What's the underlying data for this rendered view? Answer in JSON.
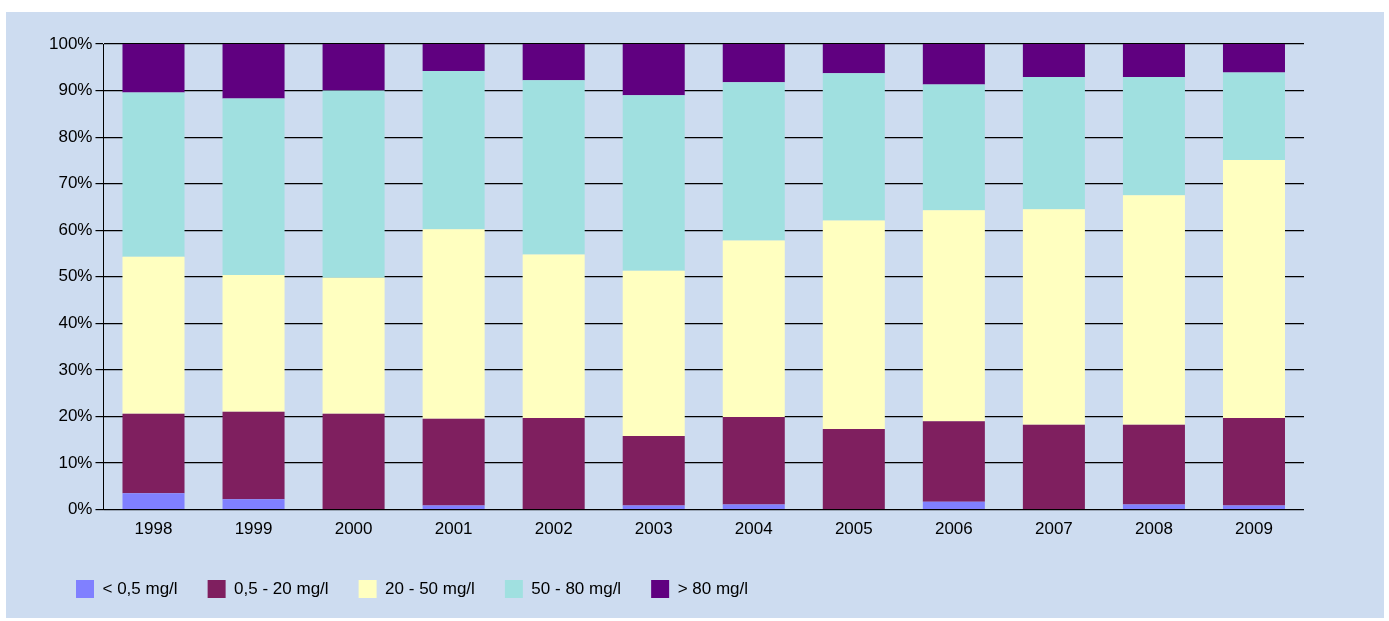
{
  "chart_data": {
    "type": "bar",
    "stacked": true,
    "categories": [
      "1998",
      "1999",
      "2000",
      "2001",
      "2002",
      "2003",
      "2004",
      "2005",
      "2006",
      "2007",
      "2008",
      "2009"
    ],
    "series": [
      {
        "name": "< 0,5 mg/l",
        "color": "#8080ff",
        "values": [
          3.5,
          2.2,
          0,
          0.9,
          0,
          0.9,
          1.1,
          0,
          1.7,
          0,
          1.1,
          0.9
        ]
      },
      {
        "name": "0,5 - 20 mg/l",
        "color": "#7f1f5f",
        "values": [
          17.1,
          18.8,
          20.6,
          18.6,
          19.7,
          14.9,
          18.8,
          17.3,
          17.3,
          18.2,
          17.1,
          18.8
        ]
      },
      {
        "name": "20 - 50 mg/l",
        "color": "#ffffc0",
        "values": [
          33.7,
          29.4,
          29.2,
          40.7,
          35.1,
          35.5,
          37.9,
          44.8,
          45.3,
          46.3,
          49.3,
          55.4
        ]
      },
      {
        "name": "50 - 80 mg/l",
        "color": "#a0e0e0",
        "values": [
          35.3,
          37.9,
          40.2,
          34.0,
          37.4,
          37.7,
          34.0,
          31.6,
          27.0,
          28.4,
          25.4,
          18.8
        ]
      },
      {
        "name": "> 80 mg/l",
        "color": "#600080",
        "values": [
          10.4,
          11.7,
          10.0,
          5.8,
          7.8,
          11.0,
          8.2,
          6.3,
          8.7,
          7.1,
          7.1,
          6.1
        ]
      }
    ],
    "ylim": [
      0,
      100
    ],
    "yticks": [
      {
        "value": 0,
        "label": "0%"
      },
      {
        "value": 10,
        "label": "10%"
      },
      {
        "value": 20,
        "label": "20%"
      },
      {
        "value": 30,
        "label": "30%"
      },
      {
        "value": 40,
        "label": "40%"
      },
      {
        "value": 50,
        "label": "50%"
      },
      {
        "value": 60,
        "label": "60%"
      },
      {
        "value": 70,
        "label": "70%"
      },
      {
        "value": 80,
        "label": "80%"
      },
      {
        "value": 90,
        "label": "90%"
      },
      {
        "value": 100,
        "label": "100%"
      }
    ],
    "grid": "y",
    "legend": "bottom"
  }
}
